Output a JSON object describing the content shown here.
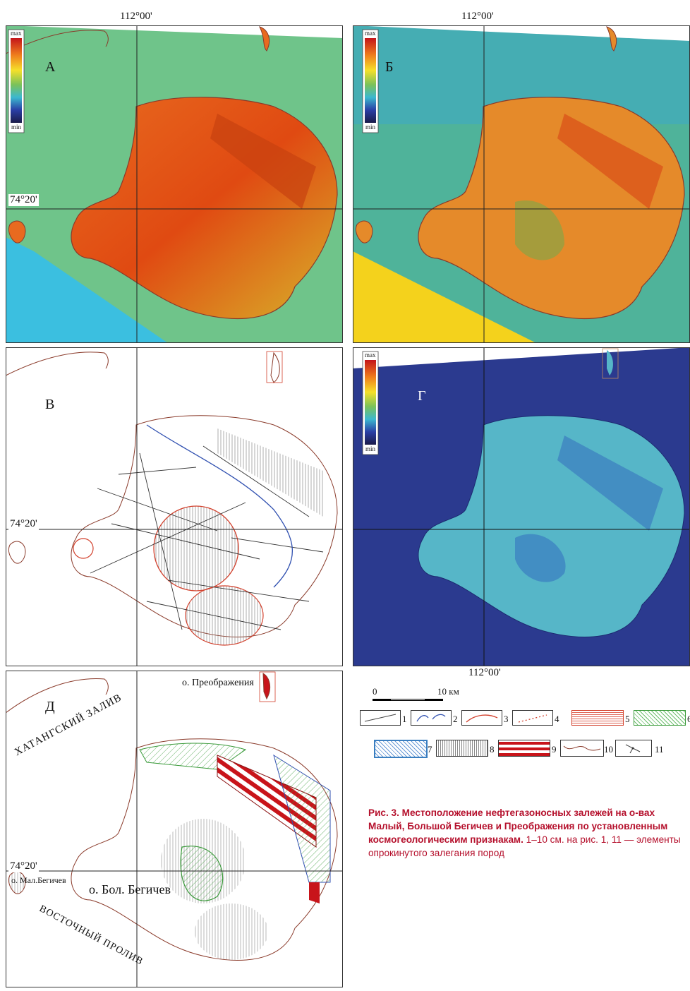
{
  "coords": {
    "lon_top": "112°00'",
    "lon_bottom": "112°00'",
    "lat": "74°20'"
  },
  "panels": {
    "a": "А",
    "b": "Б",
    "v": "В",
    "g": "Г",
    "d": "Д"
  },
  "colorbar": {
    "max": "max",
    "min": "min"
  },
  "places": {
    "preobrazheniya": "о. Преображения",
    "khatanga_bay": "ХАТАНГСКИЙ ЗАЛИВ",
    "mal_begichev": "о. Мал.Бегичев",
    "bol_begichev": "о. Бол. Бегичев",
    "vost_proliv": "ВОСТОЧНЫЙ ПРОЛИВ"
  },
  "scale": {
    "zero": "0",
    "label": "10 км"
  },
  "legend": [
    "1",
    "2",
    "3",
    "4",
    "5",
    "6",
    "7",
    "8",
    "9",
    "10",
    "11"
  ],
  "caption": {
    "bold": "Рис. 3. Местоположение нефтегазоносных залежей на о-вах Малый, Большой Бегичев и Преображения по установленным космогеологическим признакам.",
    "normal": " 1–10 см. на рис. 1, 11 — элементы опрокинутого залегания пород"
  },
  "colors": {
    "sea_a": "#6fc48a",
    "sea_b": "#52b3b0",
    "sea_g": "#2a3b8f",
    "land_hot": "#e8601c",
    "land_mid": "#f1c232",
    "land_cool": "#6fc2d8",
    "caption": "#b5102c"
  }
}
